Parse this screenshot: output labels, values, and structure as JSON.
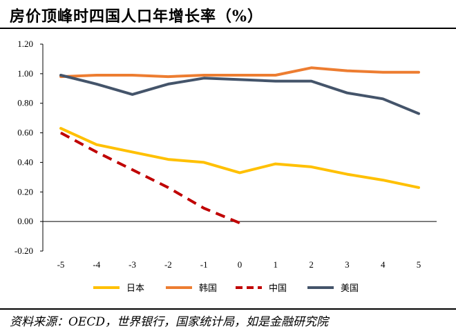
{
  "title": "房价顶峰时四国人口年增长率（%）",
  "source": "资料来源：OECD，世界银行，国家统计局，如是金融研究院",
  "chart_data": {
    "type": "line",
    "x": [
      -5,
      -4,
      -3,
      -2,
      -1,
      0,
      1,
      2,
      3,
      4,
      5
    ],
    "ylim": [
      -0.2,
      1.2
    ],
    "ytick_labels": [
      "1.20",
      "1.00",
      "0.80",
      "0.60",
      "0.40",
      "0.20",
      "0.00",
      "-0.20"
    ],
    "xtick_labels": [
      "-5",
      "-4",
      "-3",
      "-2",
      "-1",
      "0",
      "1",
      "2",
      "3",
      "4",
      "5"
    ],
    "legend_position": "bottom",
    "grid": false,
    "series": [
      {
        "name": "日本",
        "color": "#FFC000",
        "dash": false,
        "values": [
          0.63,
          0.52,
          0.47,
          0.42,
          0.4,
          0.33,
          0.39,
          0.37,
          0.32,
          0.28,
          0.23
        ]
      },
      {
        "name": "韩国",
        "color": "#ED7D31",
        "dash": false,
        "values": [
          0.98,
          0.99,
          0.99,
          0.98,
          0.99,
          0.99,
          0.99,
          1.04,
          1.02,
          1.01,
          1.01
        ]
      },
      {
        "name": "中国",
        "color": "#C00000",
        "dash": true,
        "values": [
          0.6,
          0.47,
          0.35,
          0.23,
          0.09,
          -0.01,
          null,
          null,
          null,
          null,
          null
        ]
      },
      {
        "name": "美国",
        "color": "#44546A",
        "dash": false,
        "values": [
          0.99,
          0.93,
          0.86,
          0.93,
          0.97,
          0.96,
          0.95,
          0.95,
          0.87,
          0.83,
          0.73
        ]
      }
    ]
  }
}
